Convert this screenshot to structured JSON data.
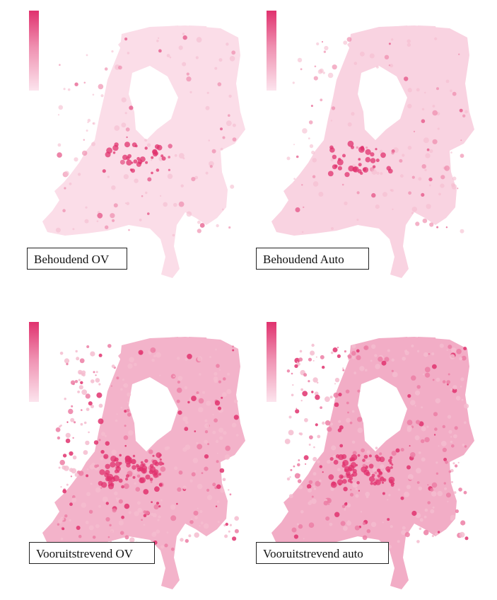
{
  "maps": [
    {
      "title": "Behoudend OV",
      "intensity": "low",
      "shade": "#fbdde8",
      "hotspots": "few"
    },
    {
      "title": "Behoudend Auto",
      "intensity": "low-medium",
      "shade": "#f9d3e1",
      "hotspots": "few"
    },
    {
      "title": "Vooruitstrevend OV",
      "intensity": "high",
      "shade": "#f3b3ca",
      "hotspots": "many"
    },
    {
      "title": "Vooruitstrevend auto",
      "intensity": "high",
      "shade": "#f2adc6",
      "hotspots": "many"
    }
  ],
  "legend": {
    "color_high": "#e0326e",
    "color_low": "#fce4ed"
  }
}
